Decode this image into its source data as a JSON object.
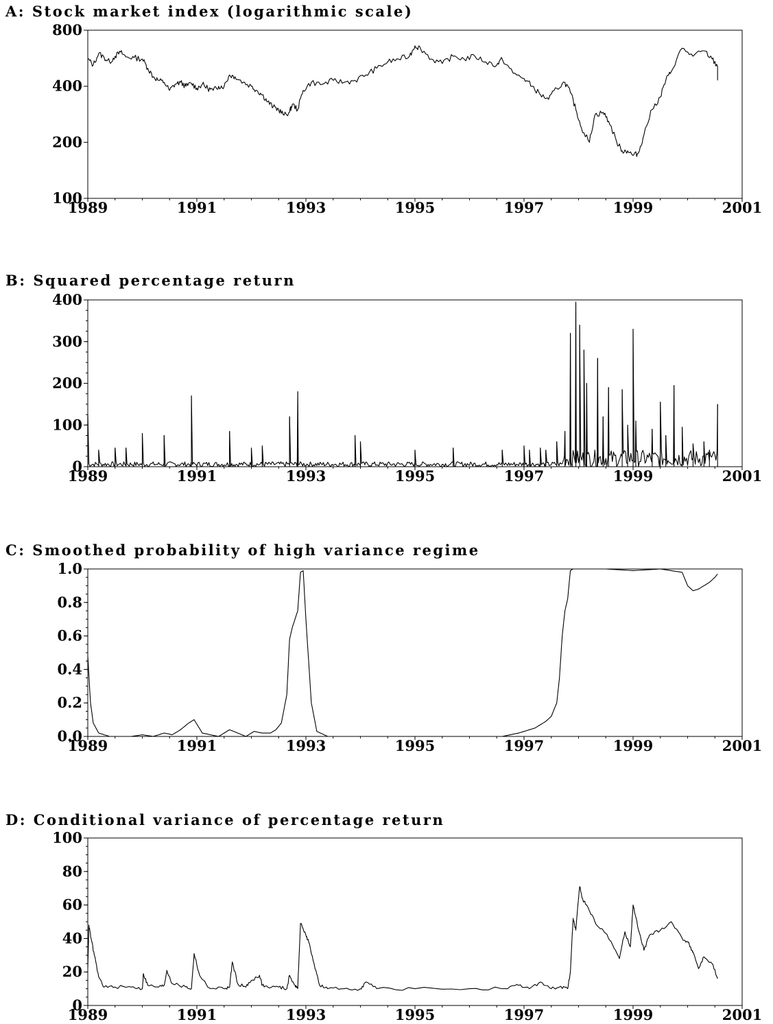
{
  "chart_data": [
    {
      "type": "line",
      "title": "A: Stock market index (logarithmic scale)",
      "xlabel": "",
      "ylabel": "",
      "yscale": "log",
      "xlim": [
        1989,
        2001
      ],
      "ylim": [
        100,
        800
      ],
      "xticks": [
        "1989",
        "1991",
        "1993",
        "1995",
        "1997",
        "1999",
        "2001"
      ],
      "yticks": [
        "800",
        "400",
        "200",
        "100"
      ],
      "ytick_values": [
        800,
        400,
        200,
        100
      ],
      "grid": false,
      "x": [
        1989.0,
        1989.1,
        1989.2,
        1989.3,
        1989.4,
        1989.5,
        1989.6,
        1989.7,
        1989.85,
        1990.0,
        1990.1,
        1990.2,
        1990.3,
        1990.4,
        1990.5,
        1990.6,
        1990.7,
        1990.8,
        1990.9,
        1991.0,
        1991.1,
        1991.2,
        1991.3,
        1991.4,
        1991.5,
        1991.6,
        1991.7,
        1991.85,
        1992.0,
        1992.1,
        1992.2,
        1992.3,
        1992.4,
        1992.5,
        1992.6,
        1992.7,
        1992.75,
        1992.85,
        1992.95,
        1993.1,
        1993.3,
        1993.5,
        1993.7,
        1993.9,
        1994.1,
        1994.3,
        1994.5,
        1994.7,
        1994.9,
        1995.0,
        1995.1,
        1995.3,
        1995.5,
        1995.7,
        1995.9,
        1996.1,
        1996.3,
        1996.5,
        1996.6,
        1996.8,
        1997.0,
        1997.15,
        1997.3,
        1997.45,
        1997.6,
        1997.75,
        1997.85,
        1997.95,
        1998.05,
        1998.2,
        1998.3,
        1998.45,
        1998.55,
        1998.7,
        1998.8,
        1998.9,
        1999.0,
        1999.1,
        1999.2,
        1999.35,
        1999.5,
        1999.6,
        1999.7,
        1999.9,
        2000.1,
        2000.3,
        2000.45,
        2000.55
      ],
      "y": [
        560,
        520,
        600,
        570,
        540,
        580,
        610,
        575,
        570,
        560,
        500,
        450,
        430,
        420,
        380,
        410,
        420,
        400,
        415,
        390,
        410,
        390,
        380,
        400,
        400,
        460,
        450,
        420,
        400,
        380,
        360,
        330,
        310,
        300,
        280,
        290,
        320,
        300,
        380,
        420,
        410,
        430,
        420,
        430,
        460,
        500,
        540,
        560,
        580,
        660,
        640,
        560,
        530,
        580,
        560,
        580,
        540,
        520,
        560,
        470,
        440,
        400,
        360,
        340,
        390,
        420,
        370,
        300,
        240,
        200,
        280,
        290,
        260,
        200,
        180,
        180,
        170,
        175,
        220,
        300,
        350,
        430,
        480,
        640,
        580,
        620,
        560,
        510
      ],
      "y_range_end": 430
    },
    {
      "type": "line",
      "title": "B: Squared percentage return",
      "xlabel": "",
      "ylabel": "",
      "xlim": [
        1989,
        2001
      ],
      "ylim": [
        0,
        400
      ],
      "xticks": [
        "1989",
        "1991",
        "1993",
        "1995",
        "1997",
        "1999",
        "2001"
      ],
      "yticks": [
        "400",
        "300",
        "200",
        "100",
        "0"
      ],
      "ytick_values": [
        400,
        300,
        200,
        100,
        0
      ],
      "grid": false,
      "spikes_x": [
        1989.0,
        1989.2,
        1989.5,
        1989.7,
        1990.0,
        1990.4,
        1990.9,
        1991.6,
        1992.0,
        1992.2,
        1992.7,
        1992.85,
        1993.9,
        1994.0,
        1995.0,
        1995.7,
        1996.6,
        1997.0,
        1997.1,
        1997.3,
        1997.4,
        1997.6,
        1997.75,
        1997.85,
        1997.95,
        1998.02,
        1998.1,
        1998.15,
        1998.35,
        1998.45,
        1998.55,
        1998.8,
        1998.9,
        1999.0,
        1999.05,
        1999.35,
        1999.5,
        1999.6,
        1999.75,
        1999.9,
        2000.1,
        2000.3,
        2000.4,
        2000.55
      ],
      "spikes_y": [
        125,
        40,
        45,
        45,
        80,
        75,
        170,
        85,
        45,
        50,
        120,
        180,
        75,
        60,
        40,
        45,
        40,
        50,
        40,
        45,
        40,
        60,
        85,
        320,
        395,
        340,
        280,
        200,
        260,
        120,
        190,
        185,
        100,
        330,
        110,
        90,
        155,
        75,
        195,
        95,
        55,
        60,
        40,
        150
      ]
    },
    {
      "type": "line",
      "title": "C: Smoothed probability of high variance regime",
      "xlabel": "",
      "ylabel": "",
      "xlim": [
        1989,
        2001
      ],
      "ylim": [
        0.0,
        1.0
      ],
      "xticks": [
        "1989",
        "1991",
        "1993",
        "1995",
        "1997",
        "1999",
        "2001"
      ],
      "yticks": [
        "1.0",
        "0.8",
        "0.6",
        "0.4",
        "0.2",
        "0.0"
      ],
      "ytick_values": [
        1.0,
        0.8,
        0.6,
        0.4,
        0.2,
        0.0
      ],
      "grid": false,
      "x": [
        1989.0,
        1989.05,
        1989.1,
        1989.2,
        1989.4,
        1989.8,
        1990.0,
        1990.2,
        1990.4,
        1990.55,
        1990.7,
        1990.85,
        1990.95,
        1991.1,
        1991.4,
        1991.6,
        1991.75,
        1991.9,
        1992.05,
        1992.2,
        1992.35,
        1992.45,
        1992.55,
        1992.65,
        1992.7,
        1992.75,
        1992.85,
        1992.9,
        1992.95,
        1993.0,
        1993.1,
        1993.2,
        1993.4,
        1994.0,
        1995.0,
        1996.0,
        1996.6,
        1996.9,
        1997.2,
        1997.4,
        1997.5,
        1997.6,
        1997.65,
        1997.7,
        1997.75,
        1997.8,
        1997.85,
        1997.9,
        1998.0,
        1998.5,
        1999.0,
        1999.5,
        1999.9,
        2000.0,
        2000.1,
        2000.2,
        2000.3,
        2000.4,
        2000.5,
        2000.55
      ],
      "y": [
        0.48,
        0.2,
        0.08,
        0.02,
        0.0,
        0.0,
        0.01,
        0.0,
        0.02,
        0.01,
        0.04,
        0.08,
        0.1,
        0.02,
        0.0,
        0.04,
        0.02,
        0.0,
        0.03,
        0.02,
        0.02,
        0.04,
        0.08,
        0.25,
        0.58,
        0.65,
        0.75,
        0.98,
        0.99,
        0.7,
        0.2,
        0.03,
        0.0,
        0.0,
        0.0,
        0.0,
        0.0,
        0.02,
        0.05,
        0.09,
        0.12,
        0.2,
        0.35,
        0.6,
        0.75,
        0.82,
        0.99,
        1.0,
        1.0,
        1.0,
        0.99,
        1.0,
        0.98,
        0.9,
        0.87,
        0.88,
        0.9,
        0.92,
        0.95,
        0.97
      ]
    },
    {
      "type": "line",
      "title": "D: Conditional variance of percentage return",
      "xlabel": "",
      "ylabel": "",
      "xlim": [
        1989,
        2001
      ],
      "ylim": [
        0,
        100
      ],
      "xticks": [
        "1989",
        "1991",
        "1993",
        "1995",
        "1997",
        "1999",
        "2001"
      ],
      "yticks": [
        "100",
        "80",
        "60",
        "40",
        "20",
        "0"
      ],
      "ytick_values": [
        100,
        80,
        60,
        40,
        20,
        0
      ],
      "grid": false,
      "x": [
        1989.0,
        1989.02,
        1989.06,
        1989.12,
        1989.2,
        1989.3,
        1989.5,
        1989.8,
        1990.0,
        1990.02,
        1990.1,
        1990.3,
        1990.4,
        1990.45,
        1990.55,
        1990.8,
        1990.9,
        1990.95,
        1991.05,
        1991.2,
        1991.5,
        1991.6,
        1991.65,
        1991.75,
        1991.9,
        1992.0,
        1992.15,
        1992.2,
        1992.3,
        1992.5,
        1992.65,
        1992.7,
        1992.8,
        1992.85,
        1992.9,
        1993.0,
        1993.05,
        1993.15,
        1993.25,
        1993.4,
        1993.7,
        1994.0,
        1994.1,
        1994.3,
        1995.0,
        1996.0,
        1996.7,
        1996.9,
        1997.1,
        1997.3,
        1997.5,
        1997.65,
        1997.8,
        1997.85,
        1997.9,
        1997.95,
        1998.02,
        1998.08,
        1998.15,
        1998.3,
        1998.45,
        1998.6,
        1998.75,
        1998.85,
        1998.95,
        1999.0,
        1999.1,
        1999.2,
        1999.3,
        1999.5,
        1999.7,
        1999.9,
        2000.0,
        2000.05,
        2000.1,
        2000.2,
        2000.3,
        2000.45,
        2000.55
      ],
      "y": [
        22,
        48,
        40,
        30,
        17,
        11,
        11,
        11,
        10,
        19,
        12,
        11,
        12,
        21,
        13,
        11,
        10,
        31,
        18,
        11,
        10,
        11,
        26,
        13,
        11,
        15,
        18,
        12,
        11,
        11,
        10,
        18,
        12,
        10,
        49,
        42,
        38,
        25,
        12,
        10,
        10,
        10,
        14,
        10,
        10,
        10,
        10,
        12,
        10,
        14,
        10,
        11,
        10,
        20,
        52,
        45,
        71,
        63,
        60,
        50,
        45,
        38,
        28,
        44,
        35,
        60,
        45,
        33,
        42,
        45,
        50,
        40,
        38,
        35,
        32,
        22,
        29,
        25,
        16
      ]
    }
  ]
}
